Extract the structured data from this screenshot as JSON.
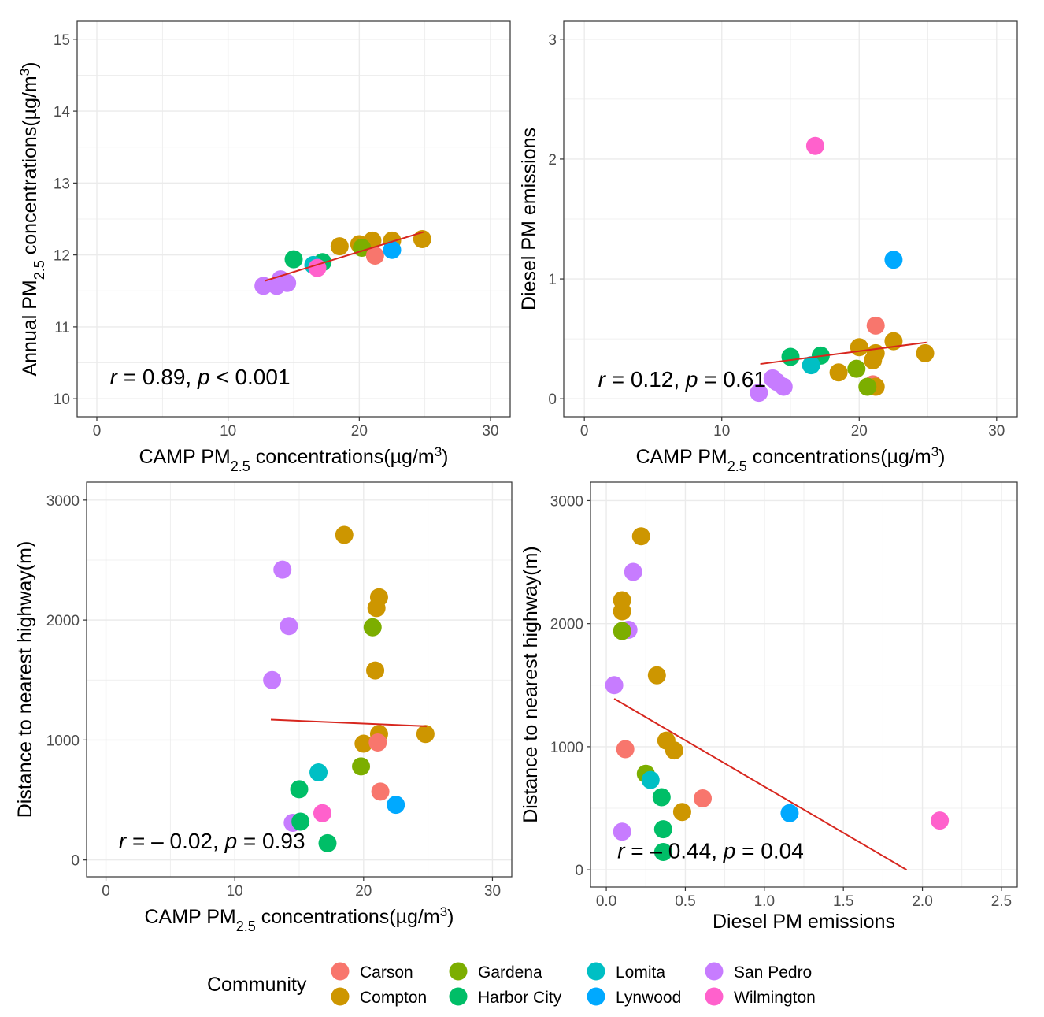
{
  "colors": {
    "Carson": "#F8766D",
    "Compton": "#CD9600",
    "Gardena": "#7CAE00",
    "Harbor City": "#00BE67",
    "Lomita": "#00BFC4",
    "Lynwood": "#00A9FF",
    "San Pedro": "#C77CFF",
    "Wilmington": "#FF61CC",
    "fit_line": "#D7261E",
    "grid": "#EBEBEB",
    "panel_border": "#333333"
  },
  "legend": {
    "title": "Community",
    "entries": [
      "Carson",
      "Compton",
      "Gardena",
      "Harbor City",
      "Lomita",
      "Lynwood",
      "San Pedro",
      "Wilmington"
    ]
  },
  "chart_data": [
    {
      "type": "scatter",
      "xlabel": {
        "prefix": "CAMP PM",
        "sub": "2.5",
        "suffix": " concentrations(µg/m",
        "sup": "3",
        "end": ")"
      },
      "ylabel": {
        "prefix": "Annual PM",
        "sub": "2.5",
        "suffix": " concentrations(µg/m",
        "sup": "3",
        "end": ")"
      },
      "xlim": [
        -1.5,
        31.5
      ],
      "ylim": [
        9.75,
        15.25
      ],
      "xticks": [
        0,
        10,
        20,
        30
      ],
      "yticks": [
        10,
        11,
        12,
        13,
        14,
        15
      ],
      "xtick_labels": [
        "0",
        "10",
        "20",
        "30"
      ],
      "ytick_labels": [
        "10",
        "11",
        "12",
        "13",
        "14",
        "15"
      ],
      "annotation": {
        "r_label": "r",
        "r_value": " = 0.89, ",
        "p_label": "p",
        "p_value": " < 0.001"
      },
      "annotation_at": [
        1,
        10.2
      ],
      "fit": {
        "x": [
          12.8,
          24.9
        ],
        "y": [
          11.64,
          12.32
        ]
      },
      "series": [
        {
          "name": "San Pedro",
          "points": [
            [
              12.7,
              11.57
            ],
            [
              13.7,
              11.57
            ],
            [
              14.0,
              11.66
            ],
            [
              14.5,
              11.61
            ]
          ]
        },
        {
          "name": "Harbor City",
          "points": [
            [
              15.0,
              11.94
            ],
            [
              17.2,
              11.9
            ]
          ]
        },
        {
          "name": "Lomita",
          "points": [
            [
              16.5,
              11.86
            ]
          ]
        },
        {
          "name": "Wilmington",
          "points": [
            [
              16.8,
              11.82
            ]
          ]
        },
        {
          "name": "Compton",
          "points": [
            [
              18.5,
              12.12
            ],
            [
              20.0,
              12.15
            ],
            [
              21.0,
              12.2
            ],
            [
              22.5,
              12.2
            ],
            [
              24.8,
              12.22
            ],
            [
              20.3,
              12.13
            ]
          ]
        },
        {
          "name": "Gardena",
          "points": [
            [
              20.2,
              12.1
            ]
          ]
        },
        {
          "name": "Carson",
          "points": [
            [
              21.2,
              11.99
            ]
          ]
        },
        {
          "name": "Lynwood",
          "points": [
            [
              22.5,
              12.07
            ]
          ]
        }
      ]
    },
    {
      "type": "scatter",
      "xlabel": {
        "prefix": "CAMP PM",
        "sub": "2.5",
        "suffix": " concentrations(µg/m",
        "sup": "3",
        "end": ")"
      },
      "ylabel": {
        "prefix": "Diesel PM emissions",
        "sub": "",
        "suffix": "",
        "sup": "",
        "end": ""
      },
      "xlim": [
        -1.5,
        31.5
      ],
      "ylim": [
        -0.15,
        3.15
      ],
      "xticks": [
        0,
        10,
        20,
        30
      ],
      "yticks": [
        0,
        1,
        2,
        3
      ],
      "xtick_labels": [
        "0",
        "10",
        "20",
        "30"
      ],
      "ytick_labels": [
        "0",
        "1",
        "2",
        "3"
      ],
      "annotation": {
        "r_label": "r",
        "r_value": " = 0.12, ",
        "p_label": "p",
        "p_value": " = 0.61"
      },
      "annotation_at": [
        1,
        0.1
      ],
      "fit": {
        "x": [
          12.8,
          24.9
        ],
        "y": [
          0.29,
          0.47
        ]
      },
      "series": [
        {
          "name": "Wilmington",
          "points": [
            [
              16.8,
              2.11
            ]
          ]
        },
        {
          "name": "Lynwood",
          "points": [
            [
              22.5,
              1.16
            ]
          ]
        },
        {
          "name": "Carson",
          "points": [
            [
              21.2,
              0.61
            ],
            [
              21.0,
              0.12
            ]
          ]
        },
        {
          "name": "Compton",
          "points": [
            [
              22.5,
              0.48
            ],
            [
              24.8,
              0.38
            ],
            [
              20.0,
              0.43
            ],
            [
              21.2,
              0.38
            ],
            [
              21.0,
              0.32
            ],
            [
              18.5,
              0.22
            ],
            [
              21.2,
              0.1
            ]
          ]
        },
        {
          "name": "Harbor City",
          "points": [
            [
              15.0,
              0.35
            ],
            [
              17.2,
              0.36
            ]
          ]
        },
        {
          "name": "Lomita",
          "points": [
            [
              16.5,
              0.28
            ]
          ]
        },
        {
          "name": "Gardena",
          "points": [
            [
              19.8,
              0.25
            ],
            [
              20.6,
              0.1
            ]
          ]
        },
        {
          "name": "San Pedro",
          "points": [
            [
              12.7,
              0.05
            ],
            [
              13.7,
              0.17
            ],
            [
              14.0,
              0.14
            ],
            [
              14.5,
              0.1
            ]
          ]
        }
      ]
    },
    {
      "type": "scatter",
      "xlabel": {
        "prefix": "CAMP PM",
        "sub": "2.5",
        "suffix": " concentrations(µg/m",
        "sup": "3",
        "end": ")"
      },
      "ylabel": {
        "prefix": "Distance to nearest highway(m)",
        "sub": "",
        "suffix": "",
        "sup": "",
        "end": ""
      },
      "xlim": [
        -1.5,
        31.5
      ],
      "ylim": [
        -140,
        3150
      ],
      "xticks": [
        0,
        10,
        20,
        30
      ],
      "yticks": [
        0,
        1000,
        2000,
        3000
      ],
      "xtick_labels": [
        "0",
        "10",
        "20",
        "30"
      ],
      "ytick_labels": [
        "0",
        "1000",
        "2000",
        "3000"
      ],
      "annotation": {
        "r_label": "r",
        "r_value": " = – 0.02, ",
        "p_label": "p",
        "p_value": " = 0.93"
      },
      "annotation_at": [
        1,
        95
      ],
      "fit": {
        "x": [
          12.8,
          24.9
        ],
        "y": [
          1170,
          1115
        ]
      },
      "series": [
        {
          "name": "Compton",
          "points": [
            [
              18.5,
              2710
            ],
            [
              21.2,
              2190
            ],
            [
              21.0,
              2100
            ],
            [
              20.9,
              1580
            ],
            [
              20.0,
              970
            ],
            [
              21.2,
              1050
            ],
            [
              24.8,
              1050
            ]
          ]
        },
        {
          "name": "San Pedro",
          "points": [
            [
              13.7,
              2420
            ],
            [
              14.2,
              1950
            ],
            [
              12.9,
              1500
            ],
            [
              14.5,
              310
            ]
          ]
        },
        {
          "name": "Gardena",
          "points": [
            [
              20.7,
              1940
            ],
            [
              19.8,
              780
            ]
          ]
        },
        {
          "name": "Carson",
          "points": [
            [
              21.1,
              980
            ],
            [
              21.3,
              570
            ]
          ]
        },
        {
          "name": "Lomita",
          "points": [
            [
              16.5,
              730
            ]
          ]
        },
        {
          "name": "Harbor City",
          "points": [
            [
              15.0,
              590
            ],
            [
              15.1,
              320
            ],
            [
              17.2,
              140
            ]
          ]
        },
        {
          "name": "Lynwood",
          "points": [
            [
              22.5,
              460
            ]
          ]
        },
        {
          "name": "Wilmington",
          "points": [
            [
              16.8,
              390
            ]
          ]
        }
      ]
    },
    {
      "type": "scatter",
      "xlabel": {
        "prefix": "Diesel PM emissions",
        "sub": "",
        "suffix": "",
        "sup": "",
        "end": ""
      },
      "ylabel": {
        "prefix": "Distance to nearest highway(m)",
        "sub": "",
        "suffix": "",
        "sup": "",
        "end": ""
      },
      "xlim": [
        -0.1,
        2.6
      ],
      "ylim": [
        -140,
        3150
      ],
      "xticks": [
        0,
        0.5,
        1,
        1.5,
        2,
        2.5
      ],
      "yticks": [
        0,
        1000,
        2000,
        3000
      ],
      "xtick_labels": [
        "0.0",
        "0.5",
        "1.0",
        "1.5",
        "2.0",
        "2.5"
      ],
      "ytick_labels": [
        "0",
        "1000",
        "2000",
        "3000"
      ],
      "annotation": {
        "r_label": "r",
        "r_value": " = – 0.44, ",
        "p_label": "p",
        "p_value": " = 0.04"
      },
      "annotation_at": [
        0.07,
        95
      ],
      "fit": {
        "x": [
          0.05,
          1.9
        ],
        "y": [
          1390,
          0
        ]
      },
      "series": [
        {
          "name": "Compton",
          "points": [
            [
              0.22,
              2710
            ],
            [
              0.1,
              2190
            ],
            [
              0.1,
              2100
            ],
            [
              0.32,
              1580
            ],
            [
              0.38,
              1050
            ],
            [
              0.43,
              970
            ],
            [
              0.48,
              470
            ]
          ]
        },
        {
          "name": "San Pedro",
          "points": [
            [
              0.17,
              2420
            ],
            [
              0.14,
              1950
            ],
            [
              0.05,
              1500
            ],
            [
              0.1,
              310
            ]
          ]
        },
        {
          "name": "Gardena",
          "points": [
            [
              0.1,
              1940
            ],
            [
              0.25,
              780
            ]
          ]
        },
        {
          "name": "Carson",
          "points": [
            [
              0.12,
              980
            ],
            [
              0.61,
              580
            ]
          ]
        },
        {
          "name": "Lomita",
          "points": [
            [
              0.28,
              730
            ]
          ]
        },
        {
          "name": "Harbor City",
          "points": [
            [
              0.35,
              590
            ],
            [
              0.36,
              330
            ],
            [
              0.36,
              145
            ]
          ]
        },
        {
          "name": "Lynwood",
          "points": [
            [
              1.16,
              460
            ]
          ]
        },
        {
          "name": "Wilmington",
          "points": [
            [
              2.11,
              400
            ]
          ]
        }
      ]
    }
  ]
}
